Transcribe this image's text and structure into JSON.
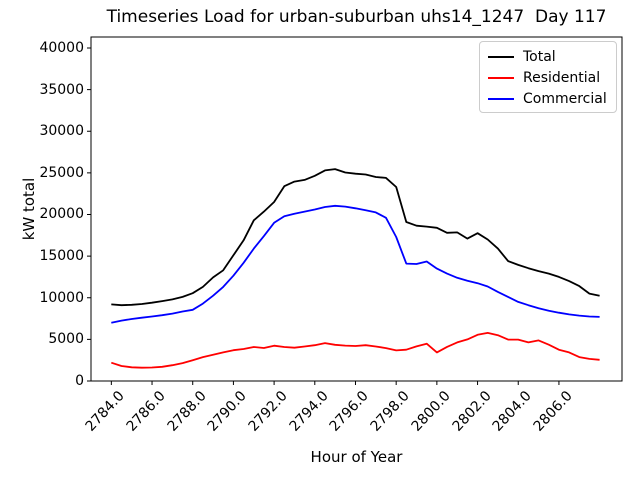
{
  "chart_data": {
    "type": "line",
    "title": "Timeseries Load for urban-suburban uhs14_1247  Day 117",
    "xlabel": "Hour of Year",
    "ylabel": "kW total",
    "xlim": [
      2783.0,
      2809.1
    ],
    "ylim": [
      0,
      41320
    ],
    "grid": false,
    "legend_position": "upper right",
    "x_start": 2784.0,
    "x_step": 0.5,
    "x_tick_values": [
      2784,
      2786,
      2788,
      2790,
      2792,
      2794,
      2796,
      2798,
      2800,
      2802,
      2804,
      2806
    ],
    "x_tick_labels": [
      "2784.0",
      "2786.0",
      "2788.0",
      "2790.0",
      "2792.0",
      "2794.0",
      "2796.0",
      "2798.0",
      "2800.0",
      "2802.0",
      "2804.0",
      "2806.0"
    ],
    "y_tick_values": [
      0,
      5000,
      10000,
      15000,
      20000,
      25000,
      30000,
      35000,
      40000
    ],
    "y_tick_labels": [
      "0",
      "5000",
      "10000",
      "15000",
      "20000",
      "25000",
      "30000",
      "35000",
      "40000"
    ],
    "series": [
      {
        "name": "Total",
        "color": "#000000",
        "values": [
          9200,
          9100,
          9150,
          9250,
          9400,
          9600,
          9800,
          10100,
          10550,
          11300,
          12450,
          13300,
          15100,
          16900,
          19300,
          20350,
          21500,
          23400,
          23950,
          24150,
          24650,
          25300,
          25450,
          25050,
          24900,
          24800,
          24500,
          24400,
          23300,
          19100,
          18650,
          18550,
          18400,
          17800,
          17850,
          17100,
          17750,
          17000,
          15900,
          14400,
          13950,
          13550,
          13200,
          12900,
          12500,
          12000,
          11400,
          10500,
          10250
        ]
      },
      {
        "name": "Residential",
        "color": "#ff0000",
        "values": [
          2200,
          1800,
          1650,
          1600,
          1620,
          1700,
          1900,
          2150,
          2500,
          2870,
          3150,
          3430,
          3700,
          3840,
          4080,
          3960,
          4240,
          4080,
          4000,
          4150,
          4300,
          4550,
          4350,
          4250,
          4200,
          4300,
          4150,
          3950,
          3670,
          3760,
          4160,
          4480,
          3430,
          4100,
          4640,
          5000,
          5550,
          5780,
          5500,
          4970,
          4970,
          4640,
          4880,
          4360,
          3760,
          3430,
          2870,
          2650,
          2550
        ]
      },
      {
        "name": "Commercial",
        "color": "#0000ff",
        "values": [
          7000,
          7250,
          7450,
          7600,
          7750,
          7900,
          8100,
          8350,
          8550,
          9300,
          10250,
          11300,
          12650,
          14200,
          15900,
          17400,
          19000,
          19800,
          20100,
          20350,
          20600,
          20900,
          21050,
          20950,
          20750,
          20500,
          20250,
          19600,
          17300,
          14100,
          14050,
          14350,
          13500,
          12900,
          12400,
          12050,
          11750,
          11350,
          10700,
          10100,
          9500,
          9100,
          8750,
          8450,
          8200,
          8000,
          7850,
          7750,
          7700
        ]
      }
    ]
  }
}
